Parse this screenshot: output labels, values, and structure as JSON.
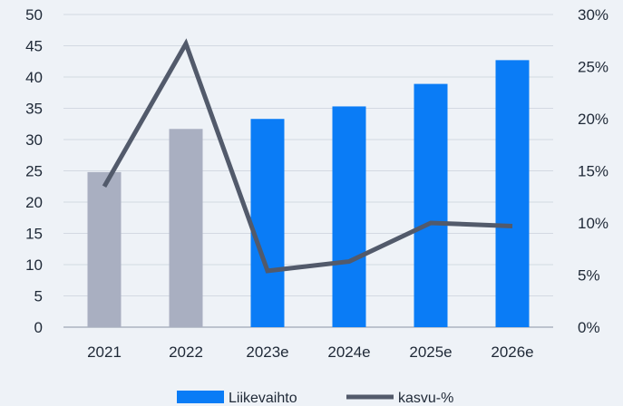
{
  "chart_data": {
    "type": "bar",
    "title": "",
    "xlabel": "",
    "ylabel": "",
    "y2label": "",
    "categories": [
      "2021",
      "2022",
      "2023e",
      "2024e",
      "2025e",
      "2026e"
    ],
    "ylim": [
      0,
      50
    ],
    "y_ticks": [
      "0",
      "5",
      "10",
      "15",
      "20",
      "25",
      "30",
      "35",
      "40",
      "45",
      "50"
    ],
    "y2lim": [
      0,
      30
    ],
    "y2_ticks": [
      "0%",
      "5%",
      "10%",
      "15%",
      "20%",
      "25%",
      "30%"
    ],
    "grid": "horizontal",
    "legend_position": "bottom",
    "series": [
      {
        "name": "Liikevaihto",
        "type": "bar",
        "axis": "left",
        "values": [
          24.8,
          31.7,
          33.3,
          35.3,
          38.9,
          42.7
        ],
        "colors": [
          "#a9afc1",
          "#a9afc1",
          "#0a7cf6",
          "#0a7cf6",
          "#0a7cf6",
          "#0a7cf6"
        ],
        "legend_color": "#0a7cf6"
      },
      {
        "name": "kasvu-%",
        "type": "line",
        "axis": "right",
        "values": [
          13.5,
          27.2,
          5.4,
          6.3,
          10.0,
          9.7
        ],
        "color": "#525a6b"
      }
    ]
  }
}
